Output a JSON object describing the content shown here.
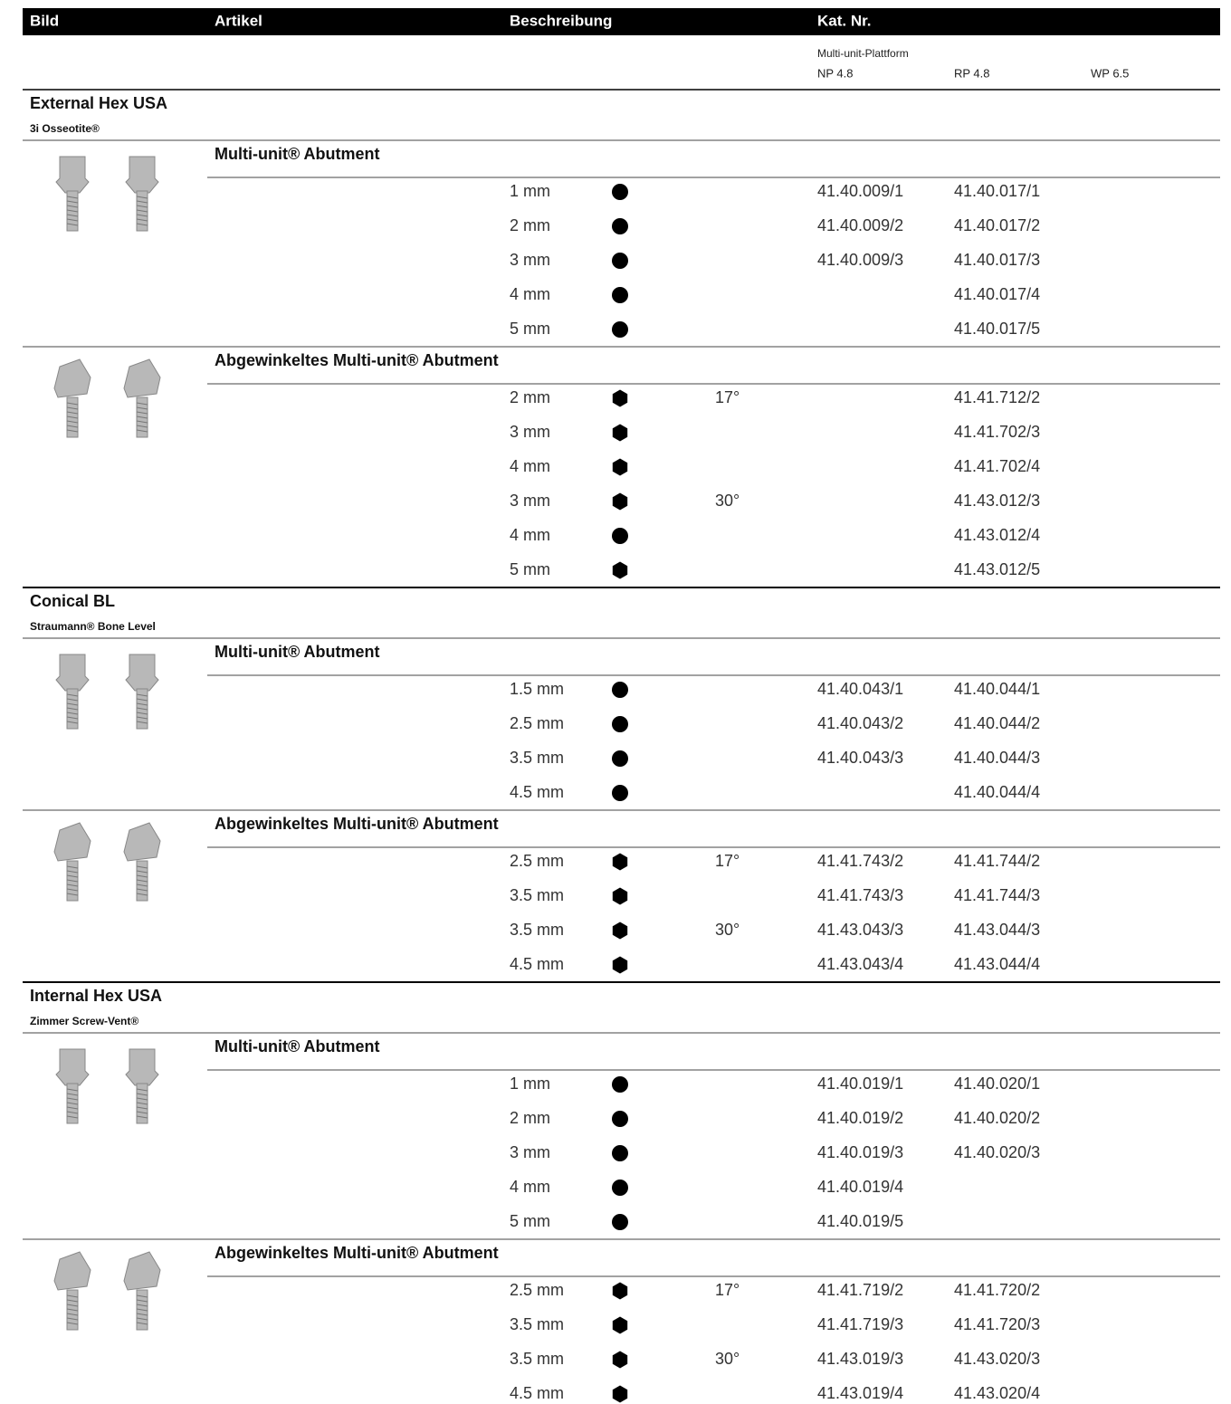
{
  "header": {
    "columns": [
      "Bild",
      "Artikel",
      "Beschreibung",
      "Kat. Nr."
    ],
    "platform": "Multi-unit-Plattform",
    "platforms": [
      "NP 4.8",
      "RP 4.8",
      "WP 6.5"
    ]
  },
  "sections": [
    {
      "title": "External Hex USA",
      "subtitle": "3i Osseotite®",
      "products": [
        {
          "name": "Multi-unit® Abutment",
          "rows": [
            {
              "height": "1 mm",
              "icon": "circle",
              "angle": null,
              "np": "41.40.009/1",
              "rp": "41.40.017/1"
            },
            {
              "height": "2 mm",
              "icon": "circle",
              "angle": null,
              "np": "41.40.009/2",
              "rp": "41.40.017/2"
            },
            {
              "height": "3 mm",
              "icon": "circle",
              "angle": null,
              "np": "41.40.009/3",
              "rp": "41.40.017/3"
            },
            {
              "height": "4 mm",
              "icon": "circle",
              "angle": null,
              "np": null,
              "rp": "41.40.017/4"
            },
            {
              "height": "5 mm",
              "icon": "circle",
              "angle": null,
              "np": null,
              "rp": "41.40.017/5"
            }
          ]
        },
        {
          "name": "Abgewinkeltes Multi-unit® Abutment",
          "rows": [
            {
              "height": "2 mm",
              "icon": "hexagon",
              "angle": "17°",
              "np": null,
              "rp": "41.41.712/2"
            },
            {
              "height": "3 mm",
              "icon": "hexagon",
              "angle": null,
              "np": null,
              "rp": "41.41.702/3"
            },
            {
              "height": "4 mm",
              "icon": "hexagon",
              "angle": null,
              "np": null,
              "rp": "41.41.702/4"
            },
            {
              "height": "3 mm",
              "icon": "hexagon",
              "angle": "30°",
              "np": null,
              "rp": "41.43.012/3"
            },
            {
              "height": "4 mm",
              "icon": "circle",
              "angle": null,
              "np": null,
              "rp": "41.43.012/4"
            },
            {
              "height": "5 mm",
              "icon": "hexagon",
              "angle": null,
              "np": null,
              "rp": "41.43.012/5"
            }
          ]
        }
      ]
    },
    {
      "title": "Conical BL",
      "subtitle": "Straumann® Bone Level",
      "products": [
        {
          "name": "Multi-unit® Abutment",
          "rows": [
            {
              "height": "1.5 mm",
              "icon": "circle",
              "angle": null,
              "np": "41.40.043/1",
              "rp": "41.40.044/1"
            },
            {
              "height": "2.5 mm",
              "icon": "circle",
              "angle": null,
              "np": "41.40.043/2",
              "rp": "41.40.044/2"
            },
            {
              "height": "3.5 mm",
              "icon": "circle",
              "angle": null,
              "np": "41.40.043/3",
              "rp": "41.40.044/3"
            },
            {
              "height": "4.5 mm",
              "icon": "circle",
              "angle": null,
              "np": null,
              "rp": "41.40.044/4"
            }
          ]
        },
        {
          "name": "Abgewinkeltes Multi-unit® Abutment",
          "rows": [
            {
              "height": "2.5 mm",
              "icon": "hexagon",
              "angle": "17°",
              "np": "41.41.743/2",
              "rp": "41.41.744/2"
            },
            {
              "height": "3.5 mm",
              "icon": "hexagon",
              "angle": null,
              "np": "41.41.743/3",
              "rp": "41.41.744/3"
            },
            {
              "height": "3.5 mm",
              "icon": "hexagon",
              "angle": "30°",
              "np": "41.43.043/3",
              "rp": "41.43.044/3"
            },
            {
              "height": "4.5 mm",
              "icon": "hexagon",
              "angle": null,
              "np": "41.43.043/4",
              "rp": "41.43.044/4"
            }
          ]
        }
      ]
    },
    {
      "title": "Internal Hex USA",
      "subtitle": "Zimmer Screw-Vent®",
      "products": [
        {
          "name": "Multi-unit® Abutment",
          "rows": [
            {
              "height": "1 mm",
              "icon": "circle",
              "angle": null,
              "np": "41.40.019/1",
              "rp": "41.40.020/1"
            },
            {
              "height": "2 mm",
              "icon": "circle",
              "angle": null,
              "np": "41.40.019/2",
              "rp": "41.40.020/2"
            },
            {
              "height": "3 mm",
              "icon": "circle",
              "angle": null,
              "np": "41.40.019/3",
              "rp": "41.40.020/3"
            },
            {
              "height": "4 mm",
              "icon": "circle",
              "angle": null,
              "np": "41.40.019/4",
              "rp": null
            },
            {
              "height": "5 mm",
              "icon": "circle",
              "angle": null,
              "np": "41.40.019/5",
              "rp": null
            }
          ]
        },
        {
          "name": "Abgewinkeltes Multi-unit® Abutment",
          "rows": [
            {
              "height": "2.5 mm",
              "icon": "hexagon",
              "angle": "17°",
              "np": "41.41.719/2",
              "rp": "41.41.720/2"
            },
            {
              "height": "3.5 mm",
              "icon": "hexagon",
              "angle": null,
              "np": "41.41.719/3",
              "rp": "41.41.720/3"
            },
            {
              "height": "3.5 mm",
              "icon": "hexagon",
              "angle": "30°",
              "np": "41.43.019/3",
              "rp": "41.43.020/3"
            },
            {
              "height": "4.5 mm",
              "icon": "hexagon",
              "angle": null,
              "np": "41.43.019/4",
              "rp": "41.43.020/4"
            }
          ]
        }
      ]
    }
  ]
}
